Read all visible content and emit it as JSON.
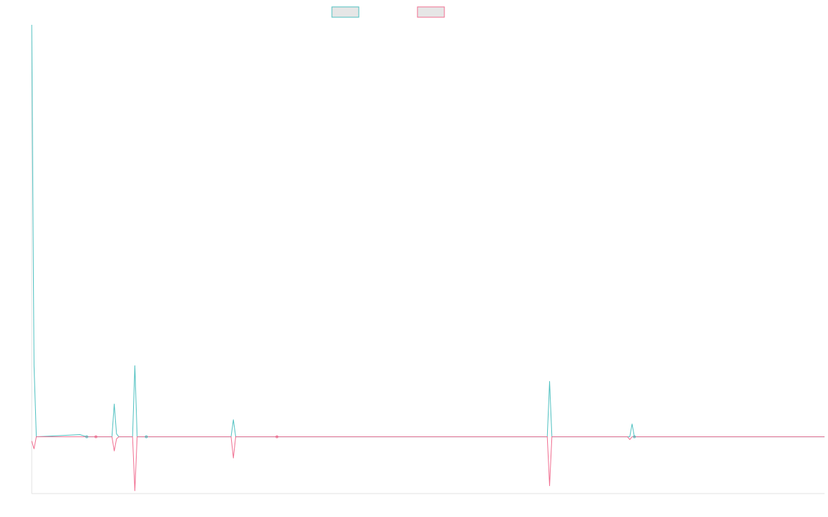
{
  "chart_data": {
    "type": "line",
    "title": "",
    "xlabel": "",
    "ylabel": "",
    "legend_placement": "top-center",
    "grid": false,
    "x_count": 347,
    "ylim": [
      -8,
      58
    ],
    "series": [
      {
        "color": "#4bbfbf",
        "points": [
          [
            0,
            58
          ],
          [
            1,
            10
          ],
          [
            2,
            0
          ],
          [
            21,
            0.3
          ],
          [
            24,
            0
          ],
          [
            28,
            0
          ],
          [
            35,
            0
          ],
          [
            36,
            4.6
          ],
          [
            37,
            0.4
          ],
          [
            38,
            0
          ],
          [
            44,
            0
          ],
          [
            45,
            10
          ],
          [
            46,
            0
          ],
          [
            50,
            0
          ],
          [
            87,
            0
          ],
          [
            88,
            2.4
          ],
          [
            89,
            0
          ],
          [
            107,
            0
          ],
          [
            225,
            0
          ],
          [
            226,
            7.8
          ],
          [
            227,
            0
          ],
          [
            261,
            0
          ],
          [
            262,
            1.8
          ],
          [
            263,
            0
          ],
          [
            346,
            0
          ]
        ]
      },
      {
        "color": "#f06b8e",
        "points": [
          [
            0,
            -0.6
          ],
          [
            1,
            -1.7
          ],
          [
            2,
            0
          ],
          [
            21,
            0
          ],
          [
            24,
            0
          ],
          [
            28,
            0
          ],
          [
            35,
            0
          ],
          [
            36,
            -2
          ],
          [
            37,
            -0.3
          ],
          [
            38,
            0
          ],
          [
            44,
            0
          ],
          [
            45,
            -7.6
          ],
          [
            46,
            0
          ],
          [
            50,
            0
          ],
          [
            87,
            0
          ],
          [
            88,
            -3
          ],
          [
            89,
            0
          ],
          [
            107,
            0
          ],
          [
            225,
            0
          ],
          [
            226,
            -6.9
          ],
          [
            227,
            0
          ],
          [
            260,
            0
          ],
          [
            261,
            -0.4
          ],
          [
            262,
            0
          ],
          [
            346,
            0
          ]
        ]
      }
    ]
  }
}
